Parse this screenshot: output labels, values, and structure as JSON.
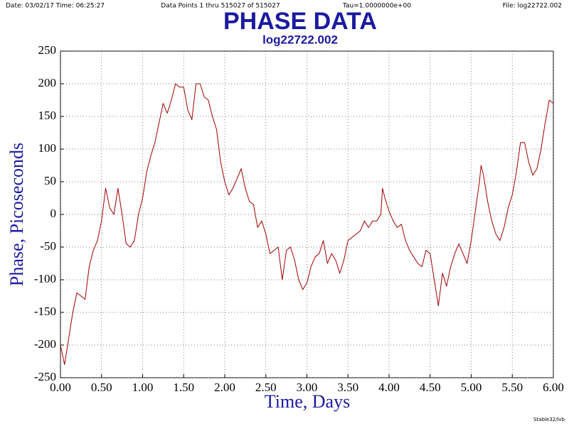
{
  "header": {
    "date_time": "Date: 03/02/17  Time: 06:25:27",
    "points": "Data Points 1 thru 515027 of 515027",
    "tau": "Tau=1.0000000e+00",
    "file": "File: log22722.002"
  },
  "footer": "Stable32/lvb",
  "chart_data": {
    "type": "line",
    "title": "PHASE DATA",
    "subtitle": "log22722.002",
    "x_label": "Time, Days",
    "y_label": "Phase, Picoseconds",
    "xlim": [
      0,
      6
    ],
    "ylim": [
      -250,
      250
    ],
    "xticks": [
      {
        "value": 0,
        "label": "0.00"
      },
      {
        "value": 0.5,
        "label": "0.50"
      },
      {
        "value": 1,
        "label": "1.00"
      },
      {
        "value": 1.5,
        "label": "1.50"
      },
      {
        "value": 2,
        "label": "2.00"
      },
      {
        "value": 2.5,
        "label": "2.50"
      },
      {
        "value": 3,
        "label": "3.00"
      },
      {
        "value": 3.5,
        "label": "3.50"
      },
      {
        "value": 4,
        "label": "4.00"
      },
      {
        "value": 4.5,
        "label": "4.50"
      },
      {
        "value": 5,
        "label": "5.00"
      },
      {
        "value": 5.5,
        "label": "5.50"
      },
      {
        "value": 6,
        "label": "6.00"
      }
    ],
    "yticks": [
      -250,
      -200,
      -150,
      -100,
      -50,
      0,
      50,
      100,
      150,
      200,
      250
    ],
    "grid": true,
    "series": [
      {
        "name": "Phase",
        "color": "#a00000",
        "x": [
          0,
          0.05,
          0.1,
          0.15,
          0.2,
          0.25,
          0.3,
          0.35,
          0.4,
          0.45,
          0.5,
          0.55,
          0.6,
          0.65,
          0.7,
          0.75,
          0.8,
          0.85,
          0.9,
          0.95,
          1.0,
          1.05,
          1.1,
          1.15,
          1.2,
          1.25,
          1.3,
          1.35,
          1.4,
          1.45,
          1.5,
          1.55,
          1.6,
          1.65,
          1.7,
          1.75,
          1.8,
          1.85,
          1.9,
          1.95,
          2.0,
          2.05,
          2.1,
          2.15,
          2.2,
          2.25,
          2.3,
          2.35,
          2.4,
          2.45,
          2.5,
          2.55,
          2.6,
          2.65,
          2.7,
          2.75,
          2.8,
          2.85,
          2.9,
          2.95,
          3.0,
          3.05,
          3.1,
          3.15,
          3.2,
          3.25,
          3.3,
          3.35,
          3.4,
          3.45,
          3.5,
          3.55,
          3.6,
          3.65,
          3.7,
          3.75,
          3.8,
          3.85,
          3.9,
          3.92,
          3.95,
          4.0,
          4.05,
          4.1,
          4.15,
          4.2,
          4.25,
          4.3,
          4.35,
          4.4,
          4.45,
          4.5,
          4.55,
          4.6,
          4.65,
          4.7,
          4.75,
          4.8,
          4.85,
          4.9,
          4.95,
          5.0,
          5.05,
          5.1,
          5.12,
          5.15,
          5.2,
          5.25,
          5.3,
          5.35,
          5.4,
          5.45,
          5.5,
          5.55,
          5.6,
          5.65,
          5.7,
          5.75,
          5.8,
          5.85,
          5.9,
          5.95,
          6.0
        ],
        "values": [
          -200,
          -230,
          -190,
          -150,
          -120,
          -125,
          -130,
          -80,
          -55,
          -40,
          -10,
          40,
          10,
          0,
          40,
          0,
          -45,
          -50,
          -40,
          0,
          25,
          65,
          90,
          110,
          140,
          170,
          155,
          175,
          200,
          195,
          195,
          160,
          145,
          200,
          200,
          180,
          175,
          150,
          130,
          80,
          50,
          30,
          40,
          55,
          70,
          40,
          20,
          15,
          -20,
          -10,
          -30,
          -60,
          -55,
          -50,
          -100,
          -55,
          -50,
          -70,
          -100,
          -115,
          -105,
          -80,
          -65,
          -60,
          -40,
          -75,
          -60,
          -70,
          -90,
          -70,
          -40,
          -35,
          -30,
          -25,
          -10,
          -20,
          -10,
          -10,
          0,
          40,
          25,
          5,
          -10,
          -20,
          -15,
          -40,
          -55,
          -65,
          -75,
          -80,
          -55,
          -60,
          -100,
          -140,
          -90,
          -110,
          -80,
          -60,
          -45,
          -60,
          -75,
          -40,
          5,
          50,
          75,
          60,
          20,
          -10,
          -30,
          -40,
          -20,
          10,
          30,
          65,
          110,
          110,
          80,
          60,
          70,
          100,
          140,
          175,
          170
        ]
      }
    ]
  }
}
